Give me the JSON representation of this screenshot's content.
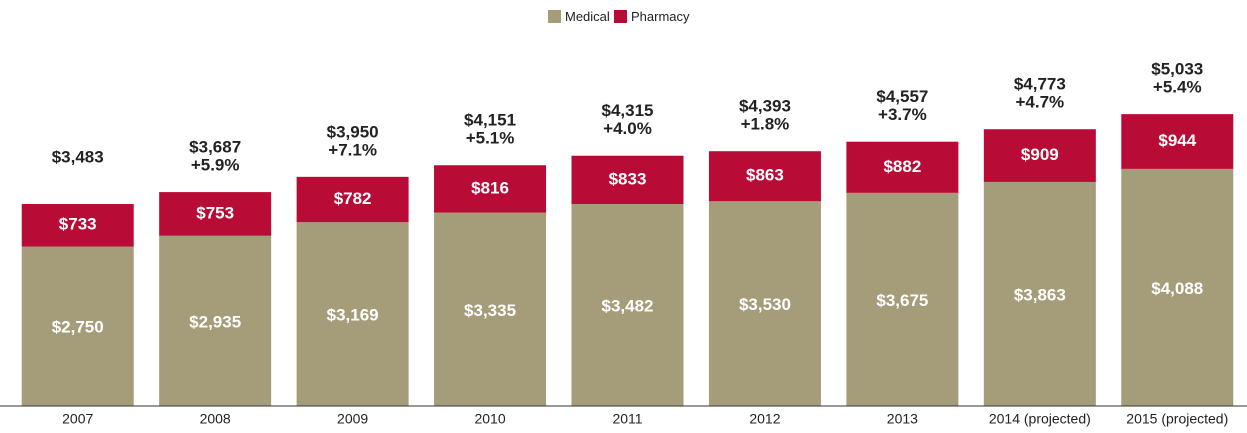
{
  "chart_data": {
    "type": "stacked_bar",
    "categories": [
      "2007",
      "2008",
      "2009",
      "2010",
      "2011",
      "2012",
      "2013",
      "2014 (projected)",
      "2015 (projected)"
    ],
    "series": [
      {
        "name": "Medical",
        "color": "#a59c7a",
        "values": [
          2750,
          2935,
          3169,
          3335,
          3482,
          3530,
          3675,
          3863,
          4088
        ],
        "value_labels": [
          "$2,750",
          "$2,935",
          "$3,169",
          "$3,335",
          "$3,482",
          "$3,530",
          "$3,675",
          "$3,863",
          "$4,088"
        ]
      },
      {
        "name": "Pharmacy",
        "color": "#b80c36",
        "values": [
          733,
          753,
          782,
          816,
          833,
          863,
          882,
          909,
          944
        ],
        "value_labels": [
          "$733",
          "$753",
          "$782",
          "$816",
          "$833",
          "$863",
          "$882",
          "$909",
          "$944"
        ]
      }
    ],
    "totals": [
      3483,
      3687,
      3950,
      4151,
      4315,
      4393,
      4557,
      4773,
      5033
    ],
    "total_labels": [
      "$3,483",
      "$3,687",
      "$3,950",
      "$4,151",
      "$4,315",
      "$4,393",
      "$4,557",
      "$4,773",
      "$5,033"
    ],
    "growth": [
      null,
      5.9,
      7.1,
      5.1,
      4.0,
      1.8,
      3.7,
      4.7,
      5.4
    ],
    "growth_labels": [
      null,
      "+5.9%",
      "+7.1%",
      "+5.1%",
      "+4.0%",
      "+1.8%",
      "+3.7%",
      "+4.7%",
      "+5.4%"
    ],
    "legend": "top"
  }
}
